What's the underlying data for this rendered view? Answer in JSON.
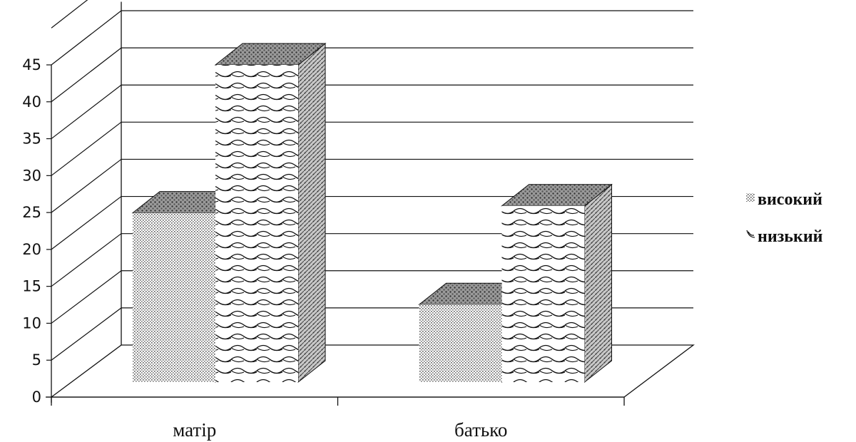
{
  "chart_data": {
    "type": "bar",
    "categories": [
      "матір",
      "батько"
    ],
    "series": [
      {
        "name": "високий",
        "values": [
          24,
          11
        ],
        "pattern": "dots"
      },
      {
        "name": "низький",
        "values": [
          45,
          25
        ],
        "pattern": "waves"
      }
    ],
    "ylim": [
      0,
      45
    ],
    "yticks": [
      0,
      5,
      10,
      15,
      20,
      25,
      30,
      35,
      40,
      45
    ],
    "grid": true,
    "legend": "right",
    "colors": {
      "line": "#111111",
      "top_fill": "#8a8a8a",
      "side_fill": "#b5b5b5"
    }
  }
}
